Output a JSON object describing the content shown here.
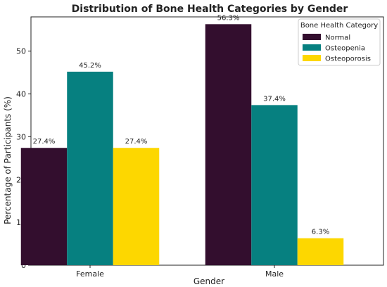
{
  "chart_data": {
    "type": "bar",
    "title": "Distribution of Bone Health Categories by Gender",
    "xlabel": "Gender",
    "ylabel": "Percentage of Participants (%)",
    "categories": [
      "Female",
      "Male"
    ],
    "ylim": [
      0,
      58
    ],
    "yticks": [
      0,
      10,
      20,
      30,
      40,
      50
    ],
    "grid": false,
    "legend": {
      "title": "Bone Health Category",
      "placement": "top-right"
    },
    "series": [
      {
        "name": "Normal",
        "color": "#330e2e",
        "values": [
          27.4,
          56.3
        ],
        "labels": [
          "27.4%",
          "56.3%"
        ]
      },
      {
        "name": "Osteopenia",
        "color": "#068080",
        "values": [
          45.2,
          37.4
        ],
        "labels": [
          "45.2%",
          "37.4%"
        ]
      },
      {
        "name": "Osteoporosis",
        "color": "#fdd700",
        "values": [
          27.4,
          6.3
        ],
        "labels": [
          "27.4%",
          "6.3%"
        ]
      }
    ]
  }
}
